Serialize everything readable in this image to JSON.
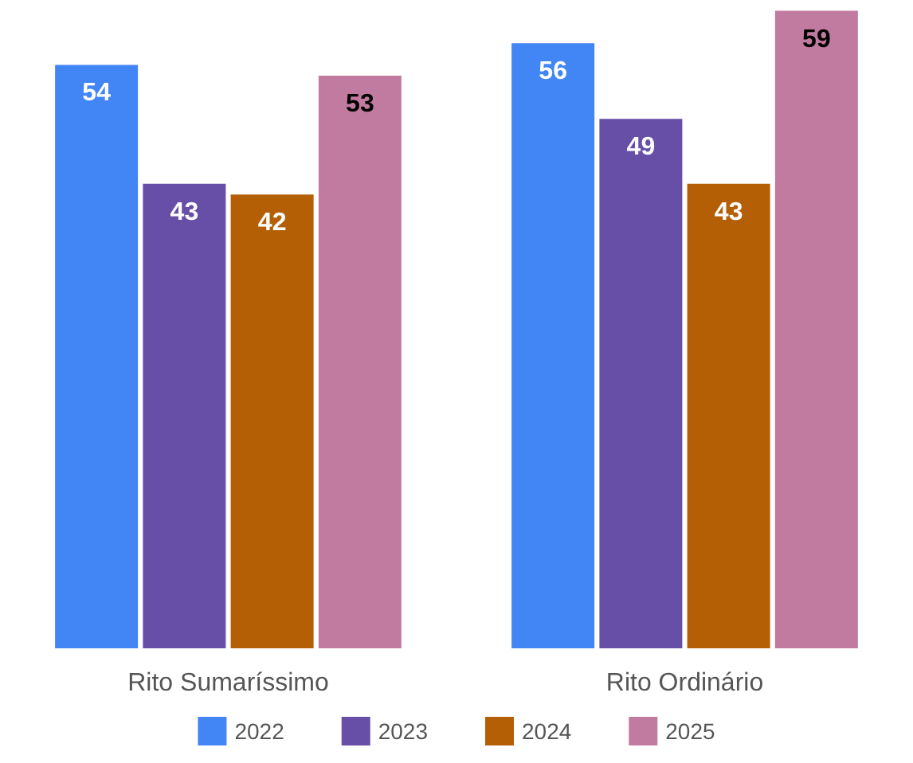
{
  "chart_data": {
    "type": "bar",
    "categories": [
      "Rito Sumaríssimo",
      "Rito Ordinário"
    ],
    "series": [
      {
        "name": "2022",
        "color": "#4285f4",
        "values": [
          54,
          56
        ]
      },
      {
        "name": "2023",
        "color": "#674ea7",
        "values": [
          43,
          49
        ]
      },
      {
        "name": "2024",
        "color": "#b45f06",
        "values": [
          42,
          43
        ]
      },
      {
        "name": "2025",
        "color": "#c27ba0",
        "values": [
          53,
          59
        ]
      }
    ],
    "data_labels": true,
    "legend": "bottom"
  }
}
